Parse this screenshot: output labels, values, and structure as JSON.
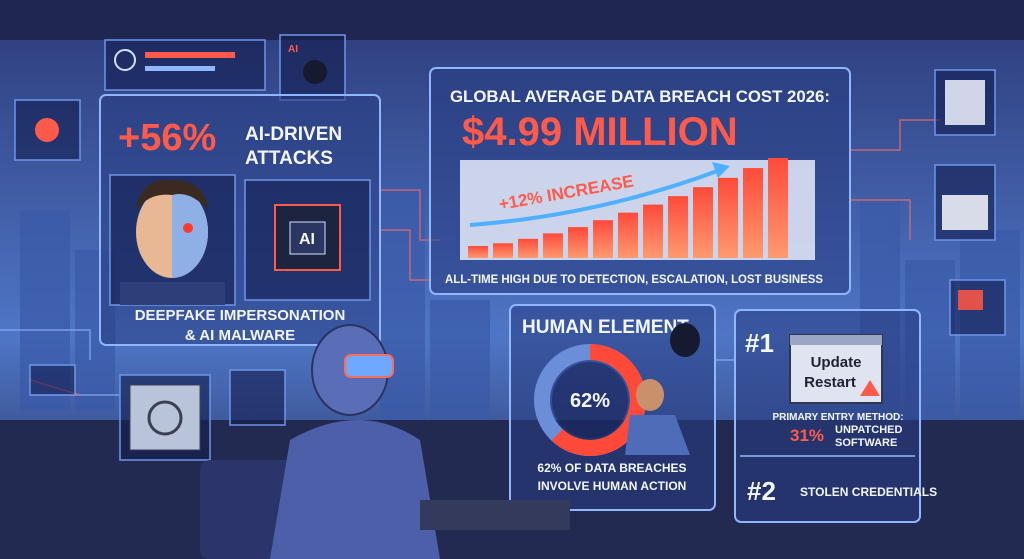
{
  "ai_panel": {
    "stat": "+56%",
    "title_lines": [
      "AI-DRIVEN",
      "ATTACKS"
    ],
    "chip_label": "AI",
    "caption_lines": [
      "DEEPFAKE IMPERSONATION",
      "& AI MALWARE"
    ]
  },
  "header_icon_label": "AI",
  "cost_panel": {
    "title": "GLOBAL AVERAGE DATA BREACH COST 2026:",
    "amount": "$4.99 MILLION",
    "trend": "+12% INCREASE",
    "caption": "ALL-TIME HIGH DUE TO DETECTION, ESCALATION, LOST BUSINESS"
  },
  "human_panel": {
    "title": "HUMAN ELEMENT",
    "donut": {
      "value": 62,
      "label": "62%"
    },
    "caption_lines": [
      "62% OF DATA BREACHES",
      "INVOLVE HUMAN ACTION"
    ]
  },
  "entry_panel": {
    "rank_1": "#1",
    "popup_lines": [
      "Update",
      "Restart"
    ],
    "primary_label": "PRIMARY ENTRY METHOD:",
    "primary_stat": "31%",
    "primary_lines": [
      "UNPATCHED",
      "SOFTWARE"
    ],
    "rank_2": "#2",
    "secondary": "STOLEN CREDENTIALS"
  }
}
